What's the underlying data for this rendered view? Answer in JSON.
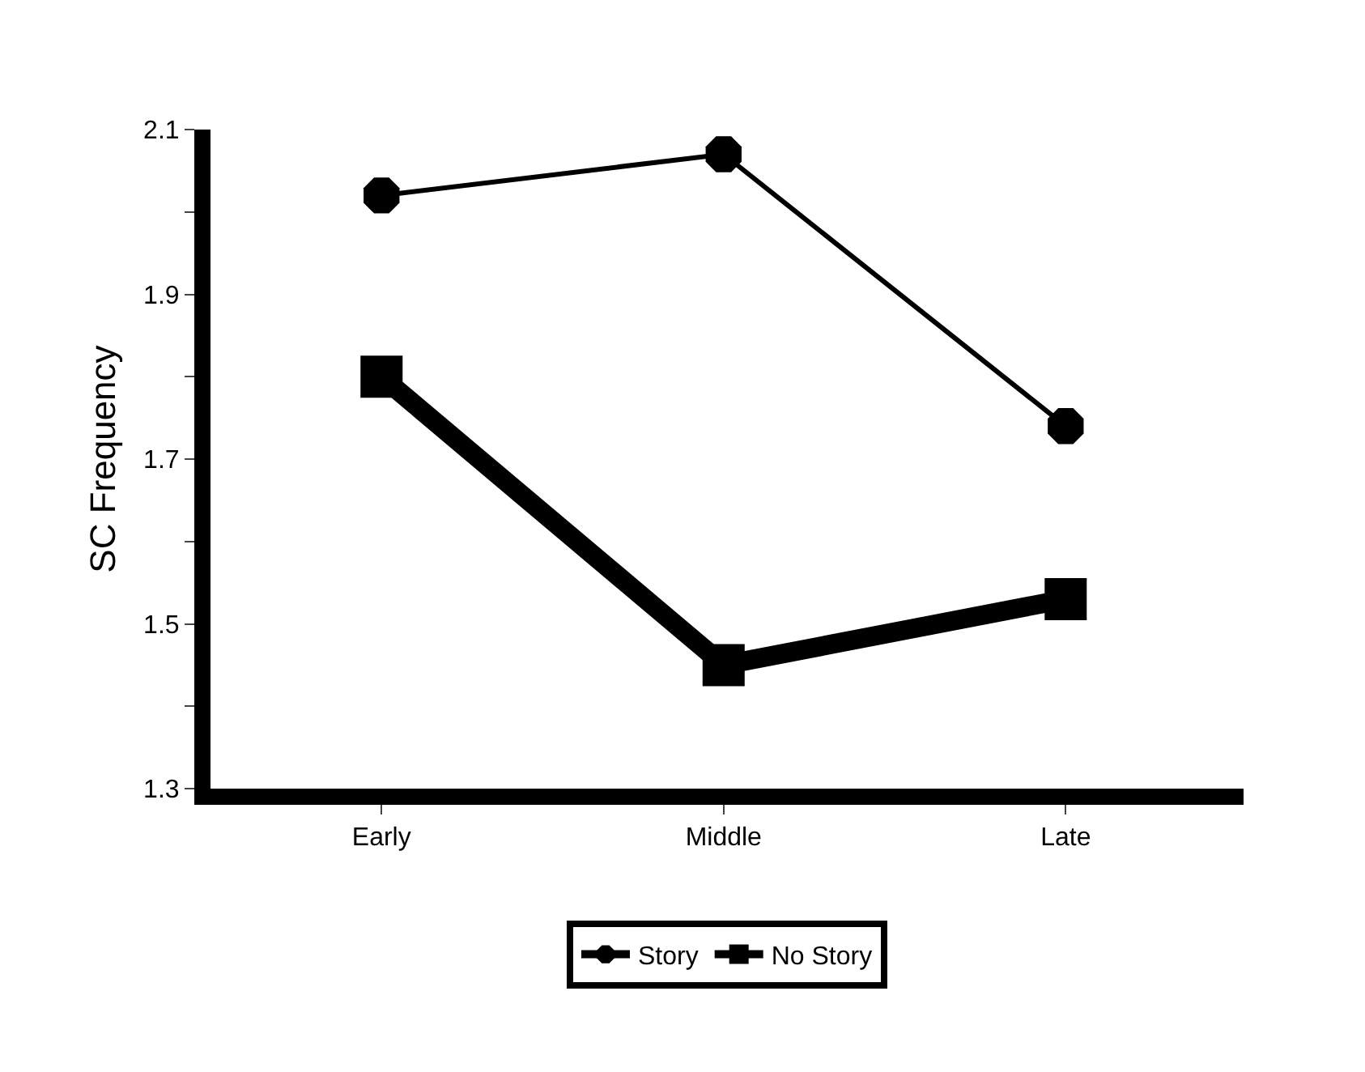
{
  "chart_data": {
    "type": "line",
    "ylabel": "SC Frequency",
    "categories": [
      "Early",
      "Middle",
      "Late"
    ],
    "series": [
      {
        "name": "Story",
        "color": "#000000",
        "marker": "circle",
        "values": [
          2.02,
          2.07,
          1.74
        ]
      },
      {
        "name": "No Story",
        "color": "#000000",
        "marker": "square",
        "values": [
          1.8,
          1.45,
          1.53
        ]
      }
    ],
    "ylim": [
      1.3,
      2.1
    ],
    "yticks": [
      1.3,
      {
        "value": 1.4,
        "label": null
      },
      1.5,
      {
        "value": 1.6,
        "label": null
      },
      1.7,
      {
        "value": 1.8,
        "label": null
      },
      1.9,
      {
        "value": 2.0,
        "label": null
      },
      2.1
    ],
    "legend": "bottom",
    "line_style": "solid"
  }
}
